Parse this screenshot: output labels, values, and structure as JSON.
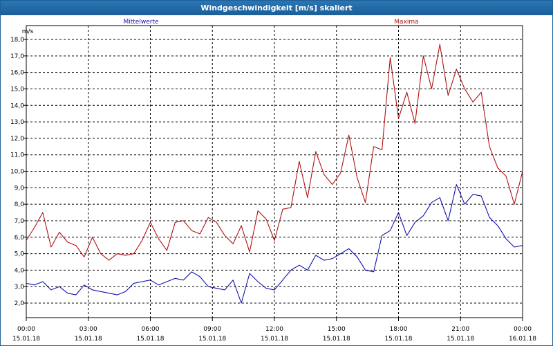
{
  "window": {
    "title": "Windgeschwindigkeit [m/s] skaliert"
  },
  "chart_data": {
    "type": "line",
    "title": "Windgeschwindigkeit [m/s] skaliert",
    "ylabel": "m/s",
    "xlabel": "",
    "ylim": [
      1.0,
      18.5
    ],
    "xlim": [
      0,
      24
    ],
    "grid": true,
    "legend_placement": "top",
    "y_ticks": [
      "2.0",
      "3.0",
      "4.0",
      "5.0",
      "6.0",
      "7.0",
      "8.0",
      "9.0",
      "10.0",
      "11.0",
      "12.0",
      "13.0",
      "14.0",
      "15.0",
      "16.0",
      "17.0",
      "18.0"
    ],
    "y_tick_labels": [
      "2,0",
      "3,0",
      "4,0",
      "5,0",
      "6,0",
      "7,0",
      "8,0",
      "9,0",
      "10,0",
      "11,0",
      "12,0",
      "13,0",
      "14,0",
      "15,0",
      "16,0",
      "17,0",
      "18,0"
    ],
    "x_ticks": [
      {
        "hour": 0,
        "time": "00:00",
        "date": "15.01.18"
      },
      {
        "hour": 3,
        "time": "03:00",
        "date": "15.01.18"
      },
      {
        "hour": 6,
        "time": "06:00",
        "date": "15.01.18"
      },
      {
        "hour": 9,
        "time": "09:00",
        "date": "15.01.18"
      },
      {
        "hour": 12,
        "time": "12:00",
        "date": "15.01.18"
      },
      {
        "hour": 15,
        "time": "15:00",
        "date": "15.01.18"
      },
      {
        "hour": 18,
        "time": "18:00",
        "date": "15.01.18"
      },
      {
        "hour": 21,
        "time": "21:00",
        "date": "15.01.18"
      },
      {
        "hour": 24,
        "time": "00:00",
        "date": "16.01.18"
      }
    ],
    "series": [
      {
        "name": "Mittelwerte",
        "color": "#1010b0",
        "x": [
          0,
          0.4,
          0.8,
          1.2,
          1.6,
          2.0,
          2.4,
          2.8,
          3.2,
          3.6,
          4.0,
          4.4,
          4.8,
          5.2,
          5.6,
          6.0,
          6.4,
          6.8,
          7.2,
          7.6,
          8.0,
          8.4,
          8.8,
          9.2,
          9.6,
          10.0,
          10.4,
          10.8,
          11.2,
          11.6,
          12.0,
          12.4,
          12.8,
          13.2,
          13.6,
          14.0,
          14.4,
          14.8,
          15.2,
          15.6,
          16.0,
          16.4,
          16.8,
          17.2,
          17.6,
          18.0,
          18.4,
          18.8,
          19.2,
          19.6,
          20.0,
          20.4,
          20.8,
          21.2,
          21.6,
          22.0,
          22.4,
          22.8,
          23.2,
          23.6,
          24.0
        ],
        "values": [
          3.2,
          3.1,
          3.3,
          2.8,
          3.0,
          2.6,
          2.5,
          3.1,
          2.8,
          2.7,
          2.6,
          2.5,
          2.7,
          3.2,
          3.3,
          3.4,
          3.1,
          3.3,
          3.5,
          3.4,
          3.9,
          3.6,
          3.0,
          2.9,
          2.8,
          3.4,
          2.0,
          3.8,
          3.3,
          2.9,
          2.8,
          3.4,
          4.0,
          4.3,
          4.0,
          4.9,
          4.6,
          4.7,
          5.0,
          5.3,
          4.8,
          4.0,
          3.9,
          6.1,
          6.4,
          7.5,
          6.1,
          6.9,
          7.3,
          8.1,
          8.4,
          7.0,
          9.2,
          8.0,
          8.6,
          8.5,
          7.2,
          6.7,
          5.9,
          5.4,
          5.5
        ]
      },
      {
        "name": "Maxima",
        "color": "#b01010",
        "x": [
          0,
          0.4,
          0.8,
          1.2,
          1.6,
          2.0,
          2.4,
          2.8,
          3.2,
          3.6,
          4.0,
          4.4,
          4.8,
          5.2,
          5.6,
          6.0,
          6.4,
          6.8,
          7.2,
          7.6,
          8.0,
          8.4,
          8.8,
          9.2,
          9.6,
          10.0,
          10.4,
          10.8,
          11.2,
          11.6,
          12.0,
          12.4,
          12.8,
          13.2,
          13.6,
          14.0,
          14.4,
          14.8,
          15.2,
          15.6,
          16.0,
          16.4,
          16.8,
          17.2,
          17.6,
          18.0,
          18.4,
          18.8,
          19.2,
          19.6,
          20.0,
          20.4,
          20.8,
          21.2,
          21.6,
          22.0,
          22.4,
          22.8,
          23.2,
          23.6,
          24.0
        ],
        "values": [
          5.8,
          6.6,
          7.5,
          5.4,
          6.3,
          5.7,
          5.5,
          4.8,
          6.0,
          5.0,
          4.6,
          5.0,
          4.9,
          5.0,
          5.8,
          6.9,
          5.9,
          5.2,
          6.9,
          7.0,
          6.4,
          6.2,
          7.2,
          6.9,
          6.1,
          5.6,
          6.7,
          5.1,
          7.6,
          7.1,
          5.8,
          7.7,
          7.8,
          10.6,
          8.4,
          11.2,
          9.8,
          9.2,
          9.9,
          12.2,
          9.6,
          8.1,
          11.5,
          11.3,
          16.9,
          13.2,
          14.8,
          12.9,
          17.0,
          15.0,
          17.7,
          14.6,
          16.2,
          15.0,
          14.2,
          14.8,
          11.5,
          10.2,
          9.7,
          8.0,
          10.0
        ]
      }
    ]
  }
}
